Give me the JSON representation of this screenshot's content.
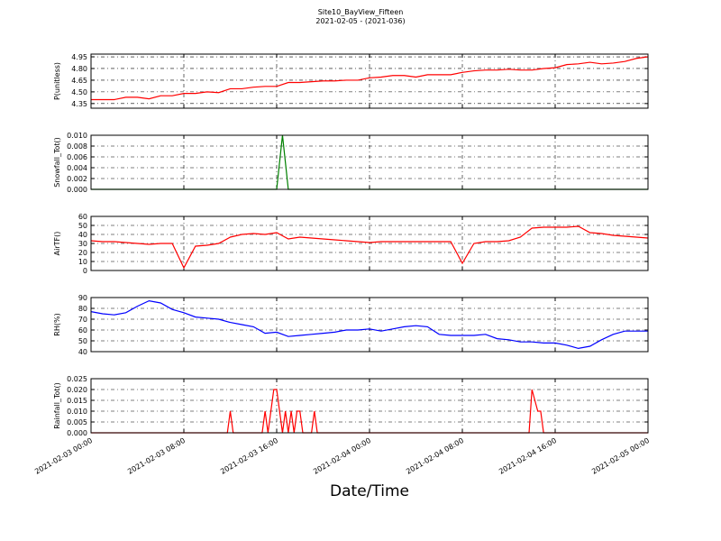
{
  "title": "Site10_BayView_Fifteen",
  "subtitle": "2021-02-05 - (2021-036)",
  "xlabel": "Date/Time",
  "chart_data": [
    {
      "type": "line",
      "ylabel": "P(unitless)",
      "color": "#ff0000",
      "grid": true,
      "xlim": [
        "2021-02-03 00:00",
        "2021-02-05 00:00"
      ],
      "xticks": [
        "2021-02-03 00:00",
        "2021-02-03 08:00",
        "2021-02-03 16:00",
        "2021-02-04 00:00",
        "2021-02-04 08:00",
        "2021-02-04 16:00",
        "2021-02-05 00:00"
      ],
      "ylim": [
        4.29,
        4.985
      ],
      "yticks": [
        4.35,
        {
          "value": 4.5,
          "label": "4.50"
        },
        4.65,
        {
          "value": 4.8,
          "label": "4.80"
        },
        4.95
      ],
      "x": [
        "2021-02-03 00:00",
        "2021-02-03 01:00",
        "2021-02-03 02:00",
        "2021-02-03 03:00",
        "2021-02-03 04:00",
        "2021-02-03 05:00",
        "2021-02-03 06:00",
        "2021-02-03 07:00",
        "2021-02-03 08:00",
        "2021-02-03 09:00",
        "2021-02-03 10:00",
        "2021-02-03 11:00",
        "2021-02-03 12:00",
        "2021-02-03 13:00",
        "2021-02-03 14:00",
        "2021-02-03 15:00",
        "2021-02-03 16:00",
        "2021-02-03 17:00",
        "2021-02-03 18:00",
        "2021-02-03 19:00",
        "2021-02-03 20:00",
        "2021-02-03 21:00",
        "2021-02-03 22:00",
        "2021-02-03 23:00",
        "2021-02-04 00:00",
        "2021-02-04 01:00",
        "2021-02-04 02:00",
        "2021-02-04 03:00",
        "2021-02-04 04:00",
        "2021-02-04 05:00",
        "2021-02-04 06:00",
        "2021-02-04 07:00",
        "2021-02-04 08:00",
        "2021-02-04 09:00",
        "2021-02-04 10:00",
        "2021-02-04 11:00",
        "2021-02-04 12:00",
        "2021-02-04 13:00",
        "2021-02-04 14:00",
        "2021-02-04 15:00",
        "2021-02-04 16:00",
        "2021-02-04 17:00",
        "2021-02-04 18:00",
        "2021-02-04 19:00",
        "2021-02-04 20:00",
        "2021-02-04 21:00",
        "2021-02-04 22:00",
        "2021-02-04 23:00",
        "2021-02-05 00:00"
      ],
      "values": [
        4.4,
        4.4,
        4.4,
        4.43,
        4.43,
        4.41,
        4.45,
        4.45,
        4.48,
        4.48,
        4.5,
        4.49,
        4.54,
        4.54,
        4.56,
        4.57,
        4.57,
        4.62,
        4.62,
        4.63,
        4.64,
        4.64,
        4.65,
        4.65,
        4.68,
        4.69,
        4.71,
        4.71,
        4.69,
        4.72,
        4.72,
        4.72,
        4.75,
        4.77,
        4.78,
        4.78,
        4.79,
        4.78,
        4.78,
        4.8,
        4.81,
        4.85,
        4.86,
        4.88,
        4.86,
        4.87,
        4.89,
        4.93,
        4.95
      ]
    },
    {
      "type": "line",
      "ylabel": "Snowfall_Tot()",
      "color": "#008000",
      "grid": true,
      "xlim": [
        "2021-02-03 00:00",
        "2021-02-05 00:00"
      ],
      "xticks": [
        "2021-02-03 00:00",
        "2021-02-03 08:00",
        "2021-02-03 16:00",
        "2021-02-04 00:00",
        "2021-02-04 08:00",
        "2021-02-04 16:00",
        "2021-02-05 00:00"
      ],
      "ylim": [
        0,
        0.01
      ],
      "yticks": [
        {
          "value": 0,
          "label": "0.000"
        },
        {
          "value": 0.002,
          "label": "0.002"
        },
        {
          "value": 0.004,
          "label": "0.004"
        },
        {
          "value": 0.006,
          "label": "0.006"
        },
        {
          "value": 0.008,
          "label": "0.008"
        },
        {
          "value": 0.01,
          "label": "0.010"
        }
      ],
      "x": [
        "2021-02-03 00:00",
        "2021-02-03 16:00",
        "2021-02-03 16:30",
        "2021-02-03 17:00",
        "2021-02-05 00:00"
      ],
      "values": [
        0,
        0,
        0.01,
        0,
        0
      ]
    },
    {
      "type": "line",
      "ylabel": "AirTF()",
      "color": "#ff0000",
      "grid": true,
      "xlim": [
        "2021-02-03 00:00",
        "2021-02-05 00:00"
      ],
      "xticks": [
        "2021-02-03 00:00",
        "2021-02-03 08:00",
        "2021-02-03 16:00",
        "2021-02-04 00:00",
        "2021-02-04 08:00",
        "2021-02-04 16:00",
        "2021-02-05 00:00"
      ],
      "ylim": [
        0,
        60
      ],
      "yticks": [
        0,
        10,
        20,
        30,
        40,
        50,
        60
      ],
      "x": [
        "2021-02-03 00:00",
        "2021-02-03 01:00",
        "2021-02-03 02:00",
        "2021-02-03 03:00",
        "2021-02-03 04:00",
        "2021-02-03 05:00",
        "2021-02-03 06:00",
        "2021-02-03 07:00",
        "2021-02-03 08:00",
        "2021-02-03 09:00",
        "2021-02-03 10:00",
        "2021-02-03 11:00",
        "2021-02-03 12:00",
        "2021-02-03 13:00",
        "2021-02-03 14:00",
        "2021-02-03 15:00",
        "2021-02-03 16:00",
        "2021-02-03 17:00",
        "2021-02-03 18:00",
        "2021-02-03 19:00",
        "2021-02-03 20:00",
        "2021-02-03 21:00",
        "2021-02-03 22:00",
        "2021-02-03 23:00",
        "2021-02-04 00:00",
        "2021-02-04 01:00",
        "2021-02-04 02:00",
        "2021-02-04 03:00",
        "2021-02-04 04:00",
        "2021-02-04 05:00",
        "2021-02-04 06:00",
        "2021-02-04 07:00",
        "2021-02-04 08:00",
        "2021-02-04 09:00",
        "2021-02-04 10:00",
        "2021-02-04 11:00",
        "2021-02-04 12:00",
        "2021-02-04 13:00",
        "2021-02-04 14:00",
        "2021-02-04 15:00",
        "2021-02-04 16:00",
        "2021-02-04 17:00",
        "2021-02-04 18:00",
        "2021-02-04 19:00",
        "2021-02-04 20:00",
        "2021-02-04 21:00",
        "2021-02-04 22:00",
        "2021-02-04 23:00",
        "2021-02-05 00:00"
      ],
      "values": [
        33,
        32,
        32,
        31,
        30,
        29,
        30,
        30,
        3,
        27,
        28,
        30,
        37,
        40,
        41,
        40,
        42,
        35,
        37,
        36,
        35,
        34,
        33,
        32,
        31,
        32,
        32,
        32,
        32,
        32,
        32,
        32,
        8,
        30,
        32,
        32,
        33,
        37,
        47,
        48,
        48,
        48,
        49,
        42,
        41,
        39,
        38,
        37,
        36
      ]
    },
    {
      "type": "line",
      "ylabel": "RH(%)",
      "color": "#0000ff",
      "grid": true,
      "xlim": [
        "2021-02-03 00:00",
        "2021-02-05 00:00"
      ],
      "xticks": [
        "2021-02-03 00:00",
        "2021-02-03 08:00",
        "2021-02-03 16:00",
        "2021-02-04 00:00",
        "2021-02-04 08:00",
        "2021-02-04 16:00",
        "2021-02-05 00:00"
      ],
      "ylim": [
        40,
        90
      ],
      "yticks": [
        40,
        50,
        60,
        70,
        80,
        90
      ],
      "x": [
        "2021-02-03 00:00",
        "2021-02-03 01:00",
        "2021-02-03 02:00",
        "2021-02-03 03:00",
        "2021-02-03 04:00",
        "2021-02-03 05:00",
        "2021-02-03 06:00",
        "2021-02-03 07:00",
        "2021-02-03 08:00",
        "2021-02-03 09:00",
        "2021-02-03 10:00",
        "2021-02-03 11:00",
        "2021-02-03 12:00",
        "2021-02-03 13:00",
        "2021-02-03 14:00",
        "2021-02-03 15:00",
        "2021-02-03 16:00",
        "2021-02-03 17:00",
        "2021-02-03 18:00",
        "2021-02-03 19:00",
        "2021-02-03 20:00",
        "2021-02-03 21:00",
        "2021-02-03 22:00",
        "2021-02-03 23:00",
        "2021-02-04 00:00",
        "2021-02-04 01:00",
        "2021-02-04 02:00",
        "2021-02-04 03:00",
        "2021-02-04 04:00",
        "2021-02-04 05:00",
        "2021-02-04 06:00",
        "2021-02-04 07:00",
        "2021-02-04 08:00",
        "2021-02-04 09:00",
        "2021-02-04 10:00",
        "2021-02-04 11:00",
        "2021-02-04 12:00",
        "2021-02-04 13:00",
        "2021-02-04 14:00",
        "2021-02-04 15:00",
        "2021-02-04 16:00",
        "2021-02-04 17:00",
        "2021-02-04 18:00",
        "2021-02-04 19:00",
        "2021-02-04 20:00",
        "2021-02-04 21:00",
        "2021-02-04 22:00",
        "2021-02-04 23:00",
        "2021-02-05 00:00"
      ],
      "values": [
        77,
        75,
        74,
        76,
        82,
        87,
        85,
        79,
        76,
        72,
        71,
        70,
        67,
        65,
        63,
        57,
        58,
        54,
        55,
        56,
        57,
        58,
        60,
        60,
        61,
        59,
        61,
        63,
        64,
        63,
        56,
        55,
        55,
        55,
        56,
        52,
        51,
        49,
        49,
        48,
        48,
        46,
        43,
        45,
        51,
        56,
        59,
        59,
        59
      ]
    },
    {
      "type": "line",
      "ylabel": "Rainfall_Tot()",
      "color": "#ff0000",
      "grid": true,
      "xlim": [
        "2021-02-03 00:00",
        "2021-02-05 00:00"
      ],
      "xticks": [
        "2021-02-03 00:00",
        "2021-02-03 08:00",
        "2021-02-03 16:00",
        "2021-02-04 00:00",
        "2021-02-04 08:00",
        "2021-02-04 16:00",
        "2021-02-05 00:00"
      ],
      "ylim": [
        0,
        0.025
      ],
      "yticks": [
        {
          "value": 0,
          "label": "0.000"
        },
        {
          "value": 0.005,
          "label": "0.005"
        },
        {
          "value": 0.01,
          "label": "0.010"
        },
        {
          "value": 0.015,
          "label": "0.015"
        },
        {
          "value": 0.02,
          "label": "0.020"
        },
        {
          "value": 0.025,
          "label": "0.025"
        }
      ],
      "x": [
        "2021-02-03 00:00",
        "2021-02-03 11:45",
        "2021-02-03 12:00",
        "2021-02-03 12:15",
        "2021-02-03 14:45",
        "2021-02-03 15:00",
        "2021-02-03 15:15",
        "2021-02-03 15:45",
        "2021-02-03 16:00",
        "2021-02-03 16:30",
        "2021-02-03 16:45",
        "2021-02-03 17:00",
        "2021-02-03 17:15",
        "2021-02-03 17:30",
        "2021-02-03 17:45",
        "2021-02-03 18:00",
        "2021-02-03 18:15",
        "2021-02-03 19:00",
        "2021-02-03 19:15",
        "2021-02-03 19:30",
        "2021-02-04 13:45",
        "2021-02-04 14:00",
        "2021-02-04 14:30",
        "2021-02-04 14:45",
        "2021-02-04 15:00",
        "2021-02-05 00:00"
      ],
      "values": [
        0,
        0,
        0.01,
        0,
        0,
        0.01,
        0,
        0.02,
        0.02,
        0,
        0.01,
        0,
        0.01,
        0,
        0.01,
        0.01,
        0,
        0,
        0.01,
        0,
        0,
        0.02,
        0.01,
        0.01,
        0,
        0
      ]
    }
  ]
}
